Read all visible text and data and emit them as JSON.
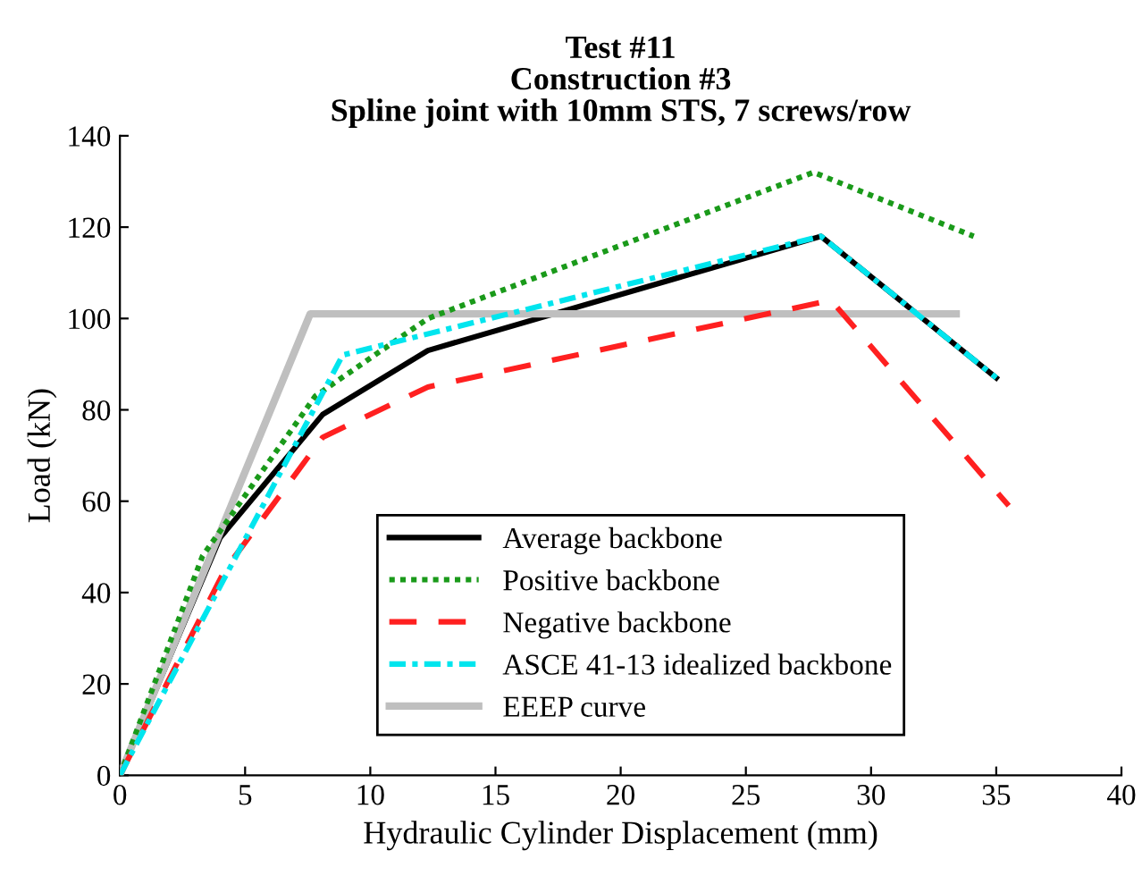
{
  "chart_data": {
    "type": "line",
    "title": "Test #11\nConstruction #3\nSpline joint with 10mm STS, 7 screws/row",
    "xlabel": "Hydraulic Cylinder Displacement (mm)",
    "ylabel": "Load (kN)",
    "xlim": [
      0,
      40
    ],
    "ylim": [
      0,
      140
    ],
    "xticks": [
      0,
      5,
      10,
      15,
      20,
      25,
      30,
      35,
      40
    ],
    "yticks": [
      0,
      20,
      40,
      60,
      80,
      100,
      120,
      140
    ],
    "legend": "bottom",
    "grid": false,
    "series": [
      {
        "name": "Average backbone",
        "color": "#000000",
        "line_style": "solid",
        "x": [
          0,
          4.0,
          8.1,
          12.3,
          28.0,
          35.0
        ],
        "values": [
          0,
          52,
          79,
          93,
          118,
          87
        ]
      },
      {
        "name": "Positive backbone",
        "color": "#1a9a1a",
        "line_style": "dotted",
        "x": [
          0,
          3.3,
          7.8,
          12.3,
          27.7,
          34.1
        ],
        "values": [
          0,
          48,
          83,
          100,
          132,
          118
        ]
      },
      {
        "name": "Negative backbone",
        "color": "#ff2020",
        "line_style": "dashed",
        "x": [
          0,
          4.2,
          8.1,
          12.3,
          28.4,
          35.5
        ],
        "values": [
          0,
          45,
          74,
          85,
          104,
          59
        ]
      },
      {
        "name": "ASCE 41-13 idealized backbone",
        "color": "#00e5ee",
        "line_style": "dashdot",
        "x": [
          0,
          8.9,
          28.0,
          35.0
        ],
        "values": [
          0,
          92,
          118,
          87
        ]
      },
      {
        "name": "EEEP curve",
        "color": "#bfbfbf",
        "line_style": "solid",
        "x": [
          0,
          7.6,
          33.4
        ],
        "values": [
          0,
          101,
          101
        ]
      }
    ]
  }
}
